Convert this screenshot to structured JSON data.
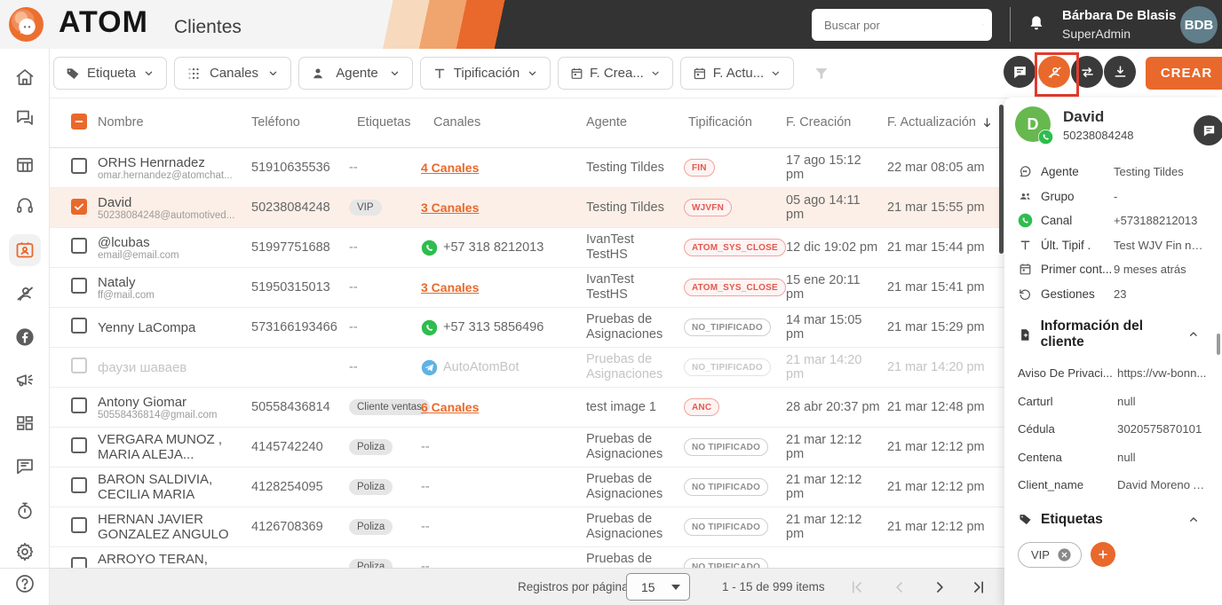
{
  "header": {
    "brand": "ATOM",
    "page": "Clientes",
    "search_placeholder": "Buscar por",
    "user": {
      "name": "Bárbara De Blasis",
      "role": "SuperAdmin",
      "initials": "BDB"
    }
  },
  "sidebar": {
    "items": [
      {
        "id": "home",
        "icon": "home-icon"
      },
      {
        "id": "chats",
        "icon": "chats-icon"
      },
      {
        "id": "boards",
        "icon": "table-icon"
      },
      {
        "id": "support",
        "icon": "headset-icon"
      },
      {
        "id": "clients",
        "icon": "contacts-icon",
        "active": true
      },
      {
        "id": "agents-off",
        "icon": "agent-off-icon"
      },
      {
        "id": "facebook",
        "icon": "facebook-icon"
      },
      {
        "id": "campaigns",
        "icon": "megaphone-icon"
      },
      {
        "id": "modules",
        "icon": "apps-icon"
      },
      {
        "id": "chat-report",
        "icon": "chat-lines-icon"
      },
      {
        "id": "timer",
        "icon": "timer-icon"
      },
      {
        "id": "settings",
        "icon": "gear-icon"
      },
      {
        "id": "help",
        "icon": "help-icon"
      }
    ]
  },
  "filters": {
    "buttons": [
      {
        "id": "etiqueta",
        "icon": "tag-icon",
        "label": "Etiqueta"
      },
      {
        "id": "canales",
        "icon": "channels-icon",
        "label": "Canales"
      },
      {
        "id": "agente",
        "icon": "person-icon",
        "label": "Agente"
      },
      {
        "id": "tipificacion",
        "icon": "typify-icon",
        "label": "Tipificación"
      },
      {
        "id": "f-creacion",
        "icon": "calendar-icon",
        "label": "F. Crea..."
      },
      {
        "id": "f-actualizacion",
        "icon": "calendar-icon",
        "label": "F. Actu..."
      }
    ]
  },
  "actions": {
    "create_label": "CREAR",
    "buttons": [
      {
        "id": "message",
        "icon": "comment-icon"
      },
      {
        "id": "assign-agent",
        "icon": "agent-off-icon",
        "accent": true,
        "highlighted": true
      },
      {
        "id": "transfer",
        "icon": "transfer-icon"
      },
      {
        "id": "download",
        "icon": "download-icon"
      }
    ]
  },
  "table": {
    "columns": [
      "Nombre",
      "Teléfono",
      "Etiquetas",
      "Canales",
      "Agente",
      "Tipificación",
      "F. Creación",
      "F. Actualización"
    ],
    "sorted_column": "F. Actualización",
    "rows": [
      {
        "name": "ORHS Henrnadez",
        "email": "omar.hernandez@atomchat...",
        "phone": "51910635536",
        "tags": [],
        "canal": {
          "type": "link",
          "text": "4 Canales"
        },
        "agente": "Testing Tildes",
        "tip": {
          "text": "FIN",
          "color": "red"
        },
        "created": "17 ago 15:12 pm",
        "updated": "22 mar 08:05 am",
        "checked": false
      },
      {
        "name": "David",
        "email": "50238084248@automotived...",
        "phone": "50238084248",
        "tags": [
          "VIP"
        ],
        "canal": {
          "type": "link",
          "text": "3 Canales"
        },
        "agente": "Testing Tildes",
        "tip": {
          "text": "WJVFN",
          "color": "red"
        },
        "created": "05 ago 14:11 pm",
        "updated": "21 mar 15:55 pm",
        "checked": true,
        "selected": true
      },
      {
        "name": "@lcubas",
        "email": "email@email.com",
        "phone": "51997751688",
        "tags": [],
        "canal": {
          "type": "whatsapp",
          "text": "+57 318 8212013"
        },
        "agente": "IvanTest TestHS",
        "tip": {
          "text": "ATOM_SYS_CLOSE",
          "color": "red"
        },
        "created": "12 dic 19:02 pm",
        "updated": "21 mar 15:44 pm",
        "checked": false
      },
      {
        "name": "Nataly",
        "email": "ff@mail.com",
        "phone": "51950315013",
        "tags": [],
        "canal": {
          "type": "link",
          "text": "3 Canales"
        },
        "agente": "IvanTest TestHS",
        "tip": {
          "text": "ATOM_SYS_CLOSE",
          "color": "red"
        },
        "created": "15 ene 20:11 pm",
        "updated": "21 mar 15:41 pm",
        "checked": false
      },
      {
        "name": "Yenny LaCompa",
        "email": "",
        "phone": "573166193466",
        "tags": [],
        "canal": {
          "type": "whatsapp",
          "text": "+57 313 5856496"
        },
        "agente": "Pruebas de Asignaciones",
        "tip": {
          "text": "NO_TIPIFICADO",
          "color": "gray"
        },
        "created": "14 mar 15:05 pm",
        "updated": "21 mar 15:29 pm",
        "checked": false
      },
      {
        "name": "фаузи шаваев",
        "email": "",
        "phone": "",
        "tags": [],
        "canal": {
          "type": "telegram",
          "text": "AutoAtomBot"
        },
        "agente": "Pruebas de Asignaciones",
        "tip": {
          "text": "NO_TIPIFICADO",
          "color": "gray"
        },
        "created": "21 mar 14:20 pm",
        "updated": "21 mar 14:20 pm",
        "checked": false,
        "disabled": true
      },
      {
        "name": "Antony Giomar",
        "email": "50558436814@gmail.com",
        "phone": "50558436814",
        "tags": [
          "Cliente ventas"
        ],
        "canal": {
          "type": "link",
          "text": "6 Canales"
        },
        "agente": "test image 1",
        "tip": {
          "text": "ANC",
          "color": "red"
        },
        "created": "28 abr 20:37 pm",
        "updated": "21 mar 12:48 pm",
        "checked": false
      },
      {
        "name": "VERGARA MUNOZ , MARIA ALEJA...",
        "email": "",
        "phone": "4145742240",
        "tags": [
          "Poliza"
        ],
        "canal": {
          "type": "dash"
        },
        "agente": "Pruebas de Asignaciones",
        "tip": {
          "text": "NO TIPIFICADO",
          "color": "gray"
        },
        "created": "21 mar 12:12 pm",
        "updated": "21 mar 12:12 pm",
        "checked": false
      },
      {
        "name": "BARON SALDIVIA, CECILIA MARIA",
        "email": "",
        "phone": "4128254095",
        "tags": [
          "Poliza"
        ],
        "canal": {
          "type": "dash"
        },
        "agente": "Pruebas de Asignaciones",
        "tip": {
          "text": "NO TIPIFICADO",
          "color": "gray"
        },
        "created": "21 mar 12:12 pm",
        "updated": "21 mar 12:12 pm",
        "checked": false
      },
      {
        "name": "HERNAN JAVIER GONZALEZ ANGULO",
        "email": "",
        "phone": "4126708369",
        "tags": [
          "Poliza"
        ],
        "canal": {
          "type": "dash"
        },
        "agente": "Pruebas de Asignaciones",
        "tip": {
          "text": "NO TIPIFICADO",
          "color": "gray"
        },
        "created": "21 mar 12:12 pm",
        "updated": "21 mar 12:12 pm",
        "checked": false
      },
      {
        "name": "ARROYO TERAN, ELSIDA",
        "email": "",
        "phone": "",
        "tags": [
          "Poliza"
        ],
        "canal": {
          "type": "dash"
        },
        "agente": "Pruebas de Asignaciones",
        "tip": {
          "text": "NO TIPIFICADO",
          "color": "gray"
        },
        "created": "",
        "updated": "",
        "checked": false
      }
    ]
  },
  "pagination": {
    "label": "Registros por página",
    "page_size": "15",
    "range": "1 - 15 de 999 items"
  },
  "panel": {
    "name": "David",
    "phone": "50238084248",
    "avatar_initial": "D",
    "attributes": [
      {
        "icon": "bubble-icon",
        "label": "Agente",
        "value": "Testing Tildes"
      },
      {
        "icon": "group-icon",
        "label": "Grupo",
        "value": "-"
      },
      {
        "icon": "whatsapp-icon",
        "label": "Canal",
        "value": "+573188212013"
      },
      {
        "icon": "typify-icon",
        "label": "Últ. Tipif .",
        "value": "Test WJV Fin negativo"
      },
      {
        "icon": "calendar-icon",
        "label": "Primer cont...",
        "value": "9 meses atrás"
      },
      {
        "icon": "gestiones-icon",
        "label": "Gestiones",
        "value": "23"
      }
    ],
    "info_section": {
      "title": "Información del cliente",
      "fields": [
        {
          "label": "Aviso De Privaci...",
          "value": "https://vw-bonn..."
        },
        {
          "label": "Carturl",
          "value": "null"
        },
        {
          "label": "Cédula",
          "value": "3020575870101"
        },
        {
          "label": "Centena",
          "value": "null"
        },
        {
          "label": "Client_name",
          "value": "David Moreno A..."
        }
      ]
    },
    "tags_section": {
      "title": "Etiquetas",
      "tags": [
        "VIP"
      ]
    }
  },
  "colors": {
    "accent": "#e8692b",
    "header_dark": "#333333",
    "selected_row": "#fcefe7",
    "badge_red": "#e25a50",
    "whatsapp_green": "#2ebd4e",
    "telegram_blue": "#5fb2e5",
    "avatar_green": "#67b84e",
    "user_avatar_gray": "#617f8b",
    "annotation_red": "#e23b2e"
  }
}
